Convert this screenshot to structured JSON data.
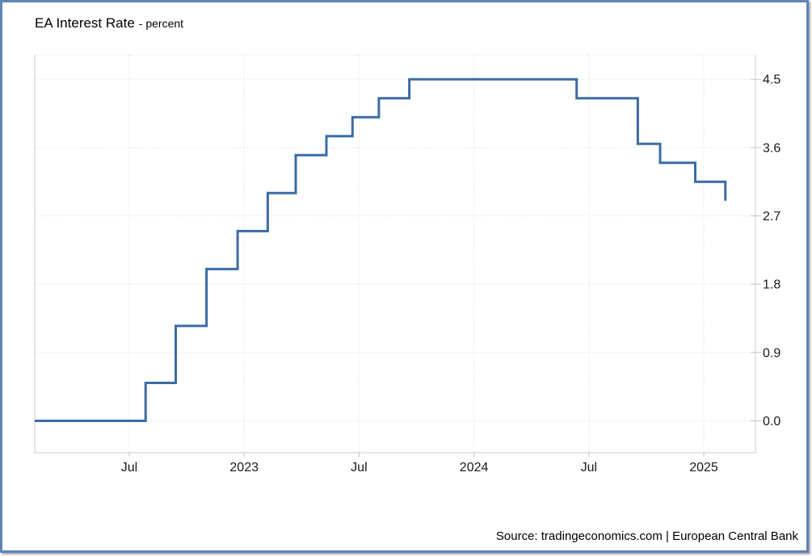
{
  "header": {
    "title": "EA Interest Rate",
    "subtitle": "- percent"
  },
  "footer": {
    "source": "Source: tradingeconomics.com | European Central Bank"
  },
  "frame": {
    "border_color": "#5e84b8"
  },
  "chart_data": {
    "type": "line",
    "subtype": "step",
    "title": "EA Interest Rate",
    "xlabel": "",
    "ylabel": "percent",
    "grid": true,
    "legend_position": "none",
    "line_color": "#3b6ca4",
    "y_axis": {
      "side": "right",
      "ylim": [
        -0.45,
        4.8
      ],
      "ticks": [
        {
          "value": 0.0,
          "label": "0.0"
        },
        {
          "value": 0.9,
          "label": "0.9"
        },
        {
          "value": 1.8,
          "label": "1.8"
        },
        {
          "value": 2.7,
          "label": "2.7"
        },
        {
          "value": 3.6,
          "label": "3.6"
        },
        {
          "value": 4.5,
          "label": "4.5"
        }
      ]
    },
    "x_axis": {
      "range": [
        "2022-02-01",
        "2025-04-01"
      ],
      "ticks": [
        {
          "date": "2022-07-01",
          "label": "Jul"
        },
        {
          "date": "2023-01-01",
          "label": "2023"
        },
        {
          "date": "2023-07-01",
          "label": "Jul"
        },
        {
          "date": "2024-01-01",
          "label": "2024"
        },
        {
          "date": "2024-07-01",
          "label": "Jul"
        },
        {
          "date": "2025-01-01",
          "label": "2025"
        }
      ]
    },
    "series": [
      {
        "name": "EA Interest Rate (percent)",
        "points": [
          {
            "date": "2022-02-01",
            "value": 0.0
          },
          {
            "date": "2022-07-27",
            "value": 0.5
          },
          {
            "date": "2022-09-14",
            "value": 1.25
          },
          {
            "date": "2022-11-02",
            "value": 2.0
          },
          {
            "date": "2022-12-21",
            "value": 2.5
          },
          {
            "date": "2023-02-08",
            "value": 3.0
          },
          {
            "date": "2023-03-22",
            "value": 3.5
          },
          {
            "date": "2023-05-10",
            "value": 3.75
          },
          {
            "date": "2023-06-21",
            "value": 4.0
          },
          {
            "date": "2023-08-02",
            "value": 4.25
          },
          {
            "date": "2023-09-20",
            "value": 4.5
          },
          {
            "date": "2024-06-12",
            "value": 4.25
          },
          {
            "date": "2024-09-18",
            "value": 3.65
          },
          {
            "date": "2024-10-23",
            "value": 3.4
          },
          {
            "date": "2024-12-18",
            "value": 3.15
          },
          {
            "date": "2025-02-05",
            "value": 2.9
          }
        ]
      }
    ]
  }
}
